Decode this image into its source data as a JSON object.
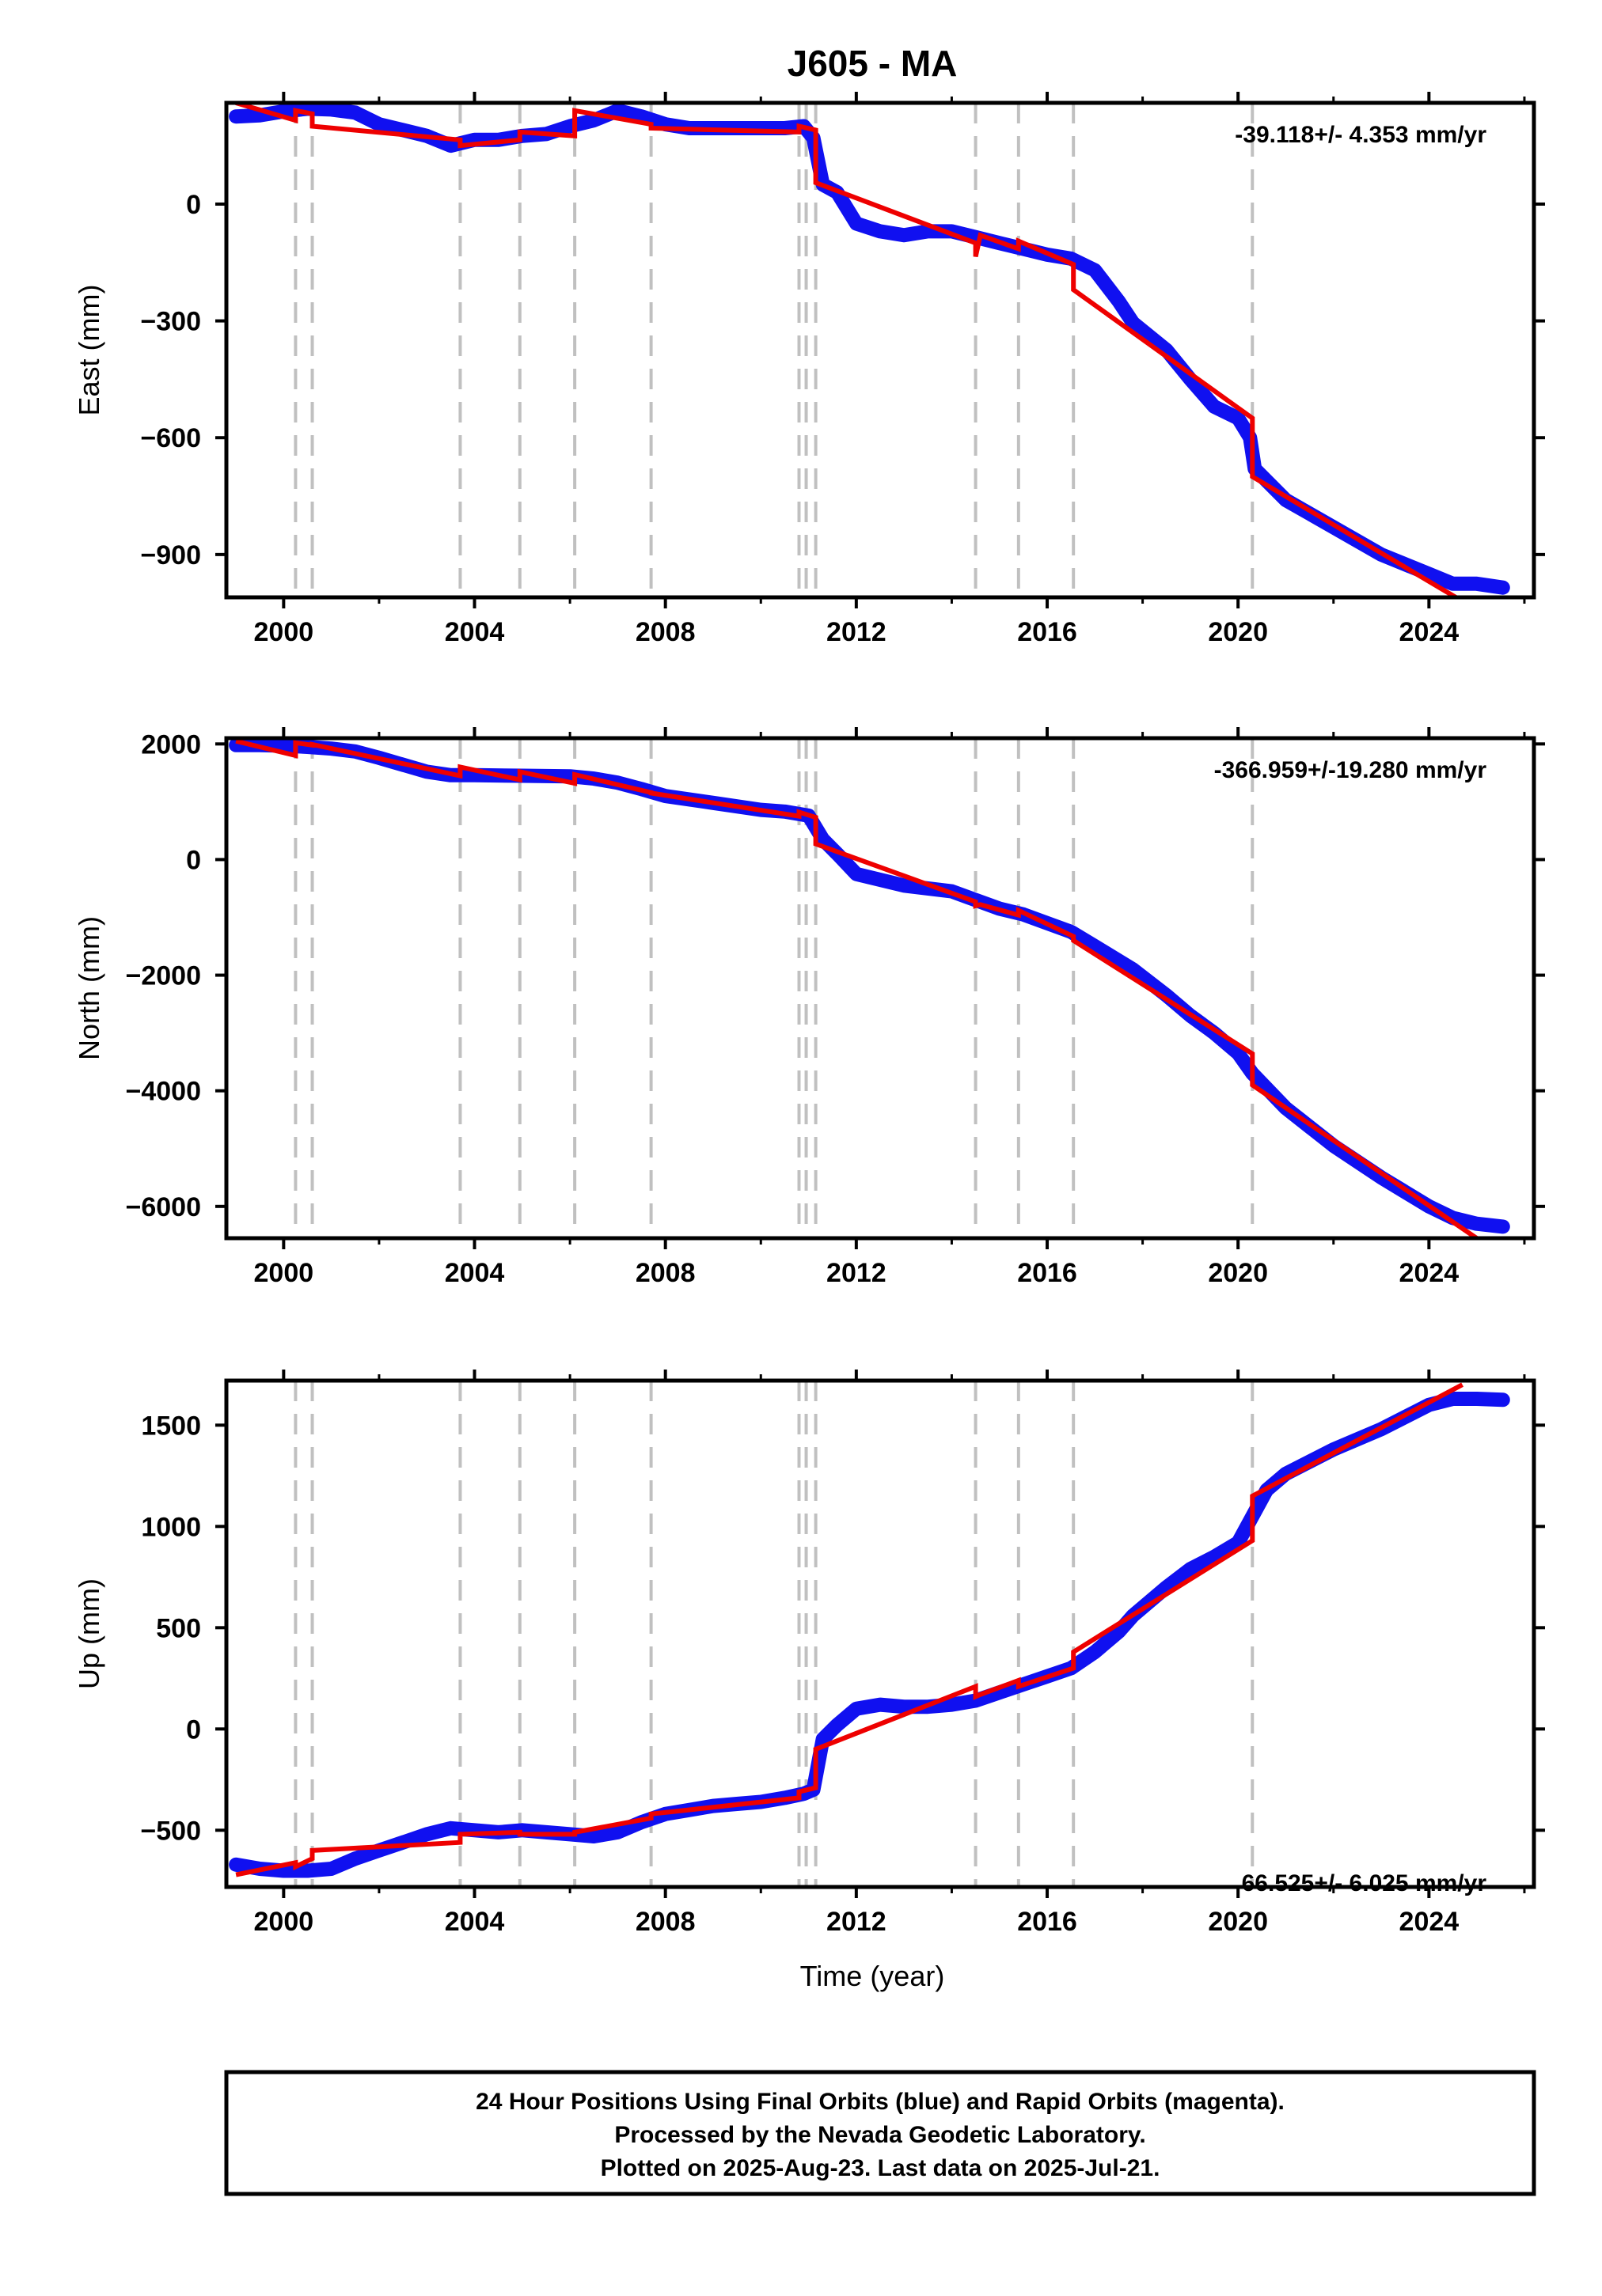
{
  "title": "J605 - MA",
  "xlabel": "Time (year)",
  "footer": {
    "line1": "24 Hour Positions Using Final Orbits (blue) and Rapid Orbits (magenta).",
    "line2": "Processed by the Nevada Geodetic Laboratory.",
    "line3": "Plotted on 2025-Aug-23. Last data on 2025-Jul-21."
  },
  "colors": {
    "final": "#1010f0",
    "model": "#ee0000",
    "breaks": "#c0c0c0"
  },
  "chart_data": [
    {
      "type": "line",
      "ylabel": "East (mm)",
      "rate": "-39.118+/- 4.353 mm/yr",
      "xlim": [
        1998.8,
        2026.2
      ],
      "ylim": [
        -1010,
        260
      ],
      "xticks": [
        2000,
        2004,
        2008,
        2012,
        2016,
        2020,
        2024
      ],
      "yticks": [
        0,
        -300,
        -600,
        -900
      ],
      "yticklabels": [
        "0",
        "−300",
        "−600",
        "−900"
      ],
      "breaks": [
        2000.25,
        2000.6,
        2003.7,
        2004.95,
        2006.1,
        2007.7,
        2010.8,
        2010.95,
        2011.15,
        2014.5,
        2015.4,
        2016.55,
        2020.3
      ],
      "series": [
        {
          "kind": "final",
          "points": [
            [
              1999.0,
              225
            ],
            [
              1999.5,
              228
            ],
            [
              2000.0,
              238
            ],
            [
              2000.5,
              245
            ],
            [
              2001.0,
              243
            ],
            [
              2001.5,
              235
            ],
            [
              2002.0,
              205
            ],
            [
              2002.5,
              190
            ],
            [
              2003.0,
              175
            ],
            [
              2003.5,
              150
            ],
            [
              2004.0,
              165
            ],
            [
              2004.5,
              165
            ],
            [
              2005.0,
              175
            ],
            [
              2005.5,
              180
            ],
            [
              2006.0,
              200
            ],
            [
              2006.5,
              215
            ],
            [
              2007.0,
              240
            ],
            [
              2007.5,
              225
            ],
            [
              2008.0,
              205
            ],
            [
              2008.5,
              195
            ],
            [
              2009.0,
              195
            ],
            [
              2009.5,
              195
            ],
            [
              2010.0,
              195
            ],
            [
              2010.5,
              195
            ],
            [
              2010.9,
              200
            ],
            [
              2011.1,
              170
            ],
            [
              2011.3,
              50
            ],
            [
              2011.6,
              30
            ],
            [
              2012.0,
              -50
            ],
            [
              2012.5,
              -70
            ],
            [
              2013.0,
              -80
            ],
            [
              2013.5,
              -70
            ],
            [
              2014.0,
              -70
            ],
            [
              2014.5,
              -85
            ],
            [
              2015.0,
              -100
            ],
            [
              2015.5,
              -115
            ],
            [
              2016.0,
              -130
            ],
            [
              2016.5,
              -140
            ],
            [
              2017.0,
              -170
            ],
            [
              2017.5,
              -250
            ],
            [
              2017.8,
              -305
            ],
            [
              2018.5,
              -375
            ],
            [
              2019.0,
              -450
            ],
            [
              2019.5,
              -520
            ],
            [
              2020.0,
              -550
            ],
            [
              2020.25,
              -600
            ],
            [
              2020.35,
              -680
            ],
            [
              2021.0,
              -760
            ],
            [
              2022.0,
              -830
            ],
            [
              2023.0,
              -900
            ],
            [
              2024.0,
              -950
            ],
            [
              2024.5,
              -975
            ],
            [
              2025.0,
              -975
            ],
            [
              2025.55,
              -985
            ]
          ]
        },
        {
          "kind": "model",
          "points": [
            [
              1999.0,
              260
            ],
            [
              2000.25,
              215
            ],
            [
              2000.25,
              240
            ],
            [
              2000.6,
              232
            ],
            [
              2000.6,
              200
            ],
            [
              2003.7,
              165
            ],
            [
              2003.7,
              150
            ],
            [
              2004.95,
              165
            ],
            [
              2004.95,
              185
            ],
            [
              2006.1,
              175
            ],
            [
              2006.1,
              240
            ],
            [
              2007.7,
              205
            ],
            [
              2007.7,
              195
            ],
            [
              2010.8,
              185
            ],
            [
              2010.8,
              200
            ],
            [
              2011.15,
              190
            ],
            [
              2011.15,
              55
            ],
            [
              2014.5,
              -100
            ],
            [
              2014.5,
              -135
            ],
            [
              2014.6,
              -80
            ],
            [
              2015.4,
              -115
            ],
            [
              2015.4,
              -95
            ],
            [
              2016.55,
              -155
            ],
            [
              2016.55,
              -220
            ],
            [
              2020.3,
              -550
            ],
            [
              2020.3,
              -700
            ],
            [
              2024.7,
              -1020
            ]
          ]
        }
      ]
    },
    {
      "type": "line",
      "ylabel": "North (mm)",
      "rate": "-366.959+/-19.280 mm/yr",
      "xlim": [
        1998.8,
        2026.2
      ],
      "ylim": [
        -6550,
        2100
      ],
      "xticks": [
        2000,
        2004,
        2008,
        2012,
        2016,
        2020,
        2024
      ],
      "yticks": [
        2000,
        0,
        -2000,
        -4000,
        -6000
      ],
      "yticklabels": [
        "2000",
        "0",
        "−2000",
        "−4000",
        "−6000"
      ],
      "breaks": [
        2000.25,
        2000.6,
        2003.7,
        2004.95,
        2006.1,
        2007.7,
        2010.8,
        2010.95,
        2011.15,
        2014.5,
        2015.4,
        2016.55,
        2020.3
      ],
      "series": [
        {
          "kind": "final",
          "points": [
            [
              1999.0,
              1980
            ],
            [
              1999.5,
              1980
            ],
            [
              2000.0,
              1970
            ],
            [
              2000.5,
              1950
            ],
            [
              2001.0,
              1920
            ],
            [
              2001.5,
              1870
            ],
            [
              2002.0,
              1760
            ],
            [
              2003.0,
              1520
            ],
            [
              2003.5,
              1460
            ],
            [
              2004.0,
              1460
            ],
            [
              2005.0,
              1450
            ],
            [
              2006.0,
              1440
            ],
            [
              2006.5,
              1400
            ],
            [
              2007.0,
              1330
            ],
            [
              2007.5,
              1220
            ],
            [
              2008.0,
              1100
            ],
            [
              2009.0,
              980
            ],
            [
              2010.0,
              860
            ],
            [
              2010.5,
              830
            ],
            [
              2011.0,
              760
            ],
            [
              2011.3,
              350
            ],
            [
              2011.6,
              100
            ],
            [
              2012.0,
              -250
            ],
            [
              2013.0,
              -450
            ],
            [
              2014.0,
              -550
            ],
            [
              2014.5,
              -700
            ],
            [
              2015.0,
              -850
            ],
            [
              2015.5,
              -950
            ],
            [
              2016.0,
              -1100
            ],
            [
              2016.5,
              -1250
            ],
            [
              2017.0,
              -1500
            ],
            [
              2017.8,
              -1900
            ],
            [
              2018.5,
              -2350
            ],
            [
              2019.0,
              -2700
            ],
            [
              2019.5,
              -3000
            ],
            [
              2020.0,
              -3350
            ],
            [
              2020.3,
              -3700
            ],
            [
              2021.0,
              -4300
            ],
            [
              2022.0,
              -4950
            ],
            [
              2023.0,
              -5500
            ],
            [
              2024.0,
              -6000
            ],
            [
              2024.5,
              -6200
            ],
            [
              2025.0,
              -6300
            ],
            [
              2025.55,
              -6350
            ]
          ]
        },
        {
          "kind": "model",
          "points": [
            [
              1999.0,
              2050
            ],
            [
              2000.25,
              1800
            ],
            [
              2000.25,
              2020
            ],
            [
              2000.6,
              1980
            ],
            [
              2000.6,
              1990
            ],
            [
              2003.7,
              1450
            ],
            [
              2003.7,
              1600
            ],
            [
              2004.95,
              1380
            ],
            [
              2004.95,
              1520
            ],
            [
              2006.1,
              1320
            ],
            [
              2006.1,
              1470
            ],
            [
              2007.7,
              1160
            ],
            [
              2007.7,
              1150
            ],
            [
              2010.8,
              750
            ],
            [
              2010.8,
              820
            ],
            [
              2011.15,
              730
            ],
            [
              2011.15,
              270
            ],
            [
              2014.5,
              -730
            ],
            [
              2014.5,
              -800
            ],
            [
              2014.6,
              -780
            ],
            [
              2015.4,
              -960
            ],
            [
              2015.4,
              -880
            ],
            [
              2016.55,
              -1330
            ],
            [
              2016.55,
              -1400
            ],
            [
              2020.3,
              -3360
            ],
            [
              2020.3,
              -3900
            ],
            [
              2025.0,
              -6550
            ]
          ]
        }
      ]
    },
    {
      "type": "line",
      "ylabel": "Up (mm)",
      "rate": "66.525+/- 6.025 mm/yr",
      "xlim": [
        1998.8,
        2026.2
      ],
      "ylim": [
        -780,
        1720
      ],
      "xticks": [
        2000,
        2004,
        2008,
        2012,
        2016,
        2020,
        2024
      ],
      "yticks": [
        1500,
        1000,
        500,
        0,
        -500
      ],
      "yticklabels": [
        "1500",
        "1000",
        "500",
        "0",
        "−500"
      ],
      "breaks": [
        2000.25,
        2000.6,
        2003.7,
        2004.95,
        2006.1,
        2007.7,
        2010.8,
        2010.95,
        2011.15,
        2014.5,
        2015.4,
        2016.55,
        2020.3
      ],
      "series": [
        {
          "kind": "final",
          "points": [
            [
              1999.0,
              -670
            ],
            [
              1999.5,
              -690
            ],
            [
              2000.0,
              -700
            ],
            [
              2000.5,
              -700
            ],
            [
              2001.0,
              -690
            ],
            [
              2001.5,
              -640
            ],
            [
              2002.0,
              -600
            ],
            [
              2002.5,
              -560
            ],
            [
              2003.0,
              -520
            ],
            [
              2003.5,
              -490
            ],
            [
              2004.0,
              -500
            ],
            [
              2004.5,
              -510
            ],
            [
              2005.0,
              -500
            ],
            [
              2005.5,
              -510
            ],
            [
              2006.0,
              -520
            ],
            [
              2006.5,
              -530
            ],
            [
              2007.0,
              -510
            ],
            [
              2007.5,
              -460
            ],
            [
              2008.0,
              -420
            ],
            [
              2008.5,
              -400
            ],
            [
              2009.0,
              -380
            ],
            [
              2009.5,
              -370
            ],
            [
              2010.0,
              -360
            ],
            [
              2010.5,
              -340
            ],
            [
              2010.9,
              -320
            ],
            [
              2011.1,
              -300
            ],
            [
              2011.3,
              -50
            ],
            [
              2011.6,
              20
            ],
            [
              2012.0,
              100
            ],
            [
              2012.5,
              120
            ],
            [
              2013.0,
              110
            ],
            [
              2013.5,
              110
            ],
            [
              2014.0,
              120
            ],
            [
              2014.5,
              140
            ],
            [
              2015.0,
              180
            ],
            [
              2015.5,
              220
            ],
            [
              2016.0,
              260
            ],
            [
              2016.5,
              300
            ],
            [
              2017.0,
              380
            ],
            [
              2017.5,
              480
            ],
            [
              2017.8,
              560
            ],
            [
              2018.5,
              700
            ],
            [
              2019.0,
              790
            ],
            [
              2019.5,
              850
            ],
            [
              2020.0,
              920
            ],
            [
              2020.3,
              1050
            ],
            [
              2020.6,
              1180
            ],
            [
              2021.0,
              1260
            ],
            [
              2022.0,
              1380
            ],
            [
              2023.0,
              1480
            ],
            [
              2024.0,
              1600
            ],
            [
              2024.5,
              1630
            ],
            [
              2025.0,
              1630
            ],
            [
              2025.55,
              1625
            ]
          ]
        },
        {
          "kind": "model",
          "points": [
            [
              1999.0,
              -720
            ],
            [
              2000.25,
              -660
            ],
            [
              2000.25,
              -680
            ],
            [
              2000.6,
              -640
            ],
            [
              2000.6,
              -600
            ],
            [
              2003.7,
              -560
            ],
            [
              2003.7,
              -520
            ],
            [
              2004.95,
              -510
            ],
            [
              2004.95,
              -520
            ],
            [
              2006.1,
              -520
            ],
            [
              2006.1,
              -510
            ],
            [
              2007.7,
              -440
            ],
            [
              2007.7,
              -420
            ],
            [
              2010.8,
              -340
            ],
            [
              2010.8,
              -310
            ],
            [
              2011.15,
              -290
            ],
            [
              2011.15,
              -100
            ],
            [
              2014.5,
              210
            ],
            [
              2014.5,
              160
            ],
            [
              2014.6,
              170
            ],
            [
              2015.4,
              240
            ],
            [
              2015.4,
              210
            ],
            [
              2016.55,
              300
            ],
            [
              2016.55,
              380
            ],
            [
              2020.3,
              930
            ],
            [
              2020.3,
              1150
            ],
            [
              2024.7,
              1700
            ]
          ]
        }
      ]
    }
  ]
}
